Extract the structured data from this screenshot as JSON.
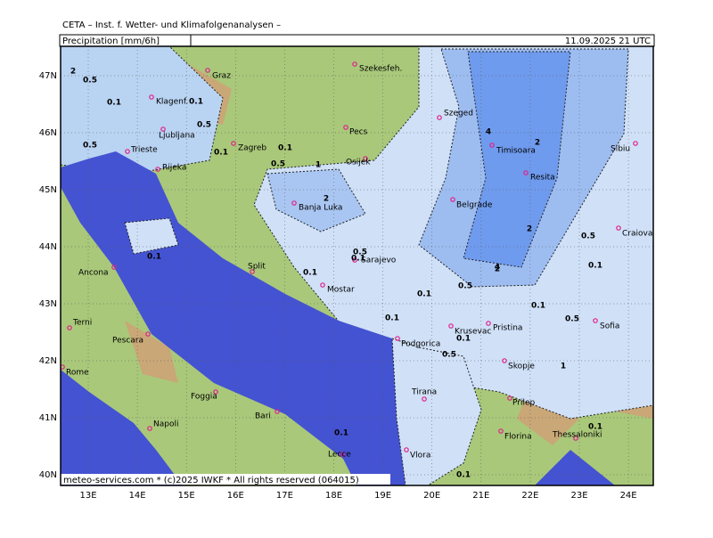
{
  "header": {
    "institute": "CETA – Inst. f. Wetter- und Klimafolgenanalysen –",
    "title": "Precipitation [mm/6h]",
    "datetime": "11.09.2025 21 UTC"
  },
  "footer": "meteo-services.com * (c)2025 IWKF * All rights reserved (064015)",
  "lat_labels": [
    "47N",
    "46N",
    "45N",
    "44N",
    "43N",
    "42N",
    "41N",
    "40N"
  ],
  "lon_labels": [
    "13E",
    "14E",
    "15E",
    "16E",
    "17E",
    "18E",
    "19E",
    "20E",
    "21E",
    "22E",
    "23E",
    "24E"
  ],
  "cities": [
    "Graz",
    "Szekesfeh.",
    "Klagenf.",
    "Szeged",
    "Ljubljana",
    "Pecs",
    "Zagreb",
    "Trieste",
    "Rijeka",
    "Osijek",
    "Timisoara",
    "Sibiu",
    "Resita",
    "Banja Luka",
    "Belgrade",
    "Craiova",
    "Ancona",
    "Split",
    "Sarajevo",
    "Mostar",
    "Terni",
    "Pescara",
    "Krusevac",
    "Pristina",
    "Sofia",
    "Podgorica",
    "Rome",
    "Skopje",
    "Foggia",
    "Tirana",
    "Prilep",
    "Bari",
    "Napoli",
    "Florina",
    "Thessaloniki",
    "Lecce",
    "Vlora"
  ],
  "contour_labels": [
    "2",
    "0.5",
    "0.1",
    "0.5",
    "0.1",
    "0.1",
    "0.5",
    "1",
    "2",
    "4",
    "2",
    "0.1",
    "0.5",
    "0.1",
    "0.1",
    "0.1",
    "0.5",
    "2",
    "0.5",
    "4",
    "2",
    "0.1",
    "0.1",
    "0.5",
    "0.1",
    "0.1",
    "0.5",
    "1",
    "0.1",
    "0.1",
    "0.1",
    "0.5",
    "0.1"
  ]
}
